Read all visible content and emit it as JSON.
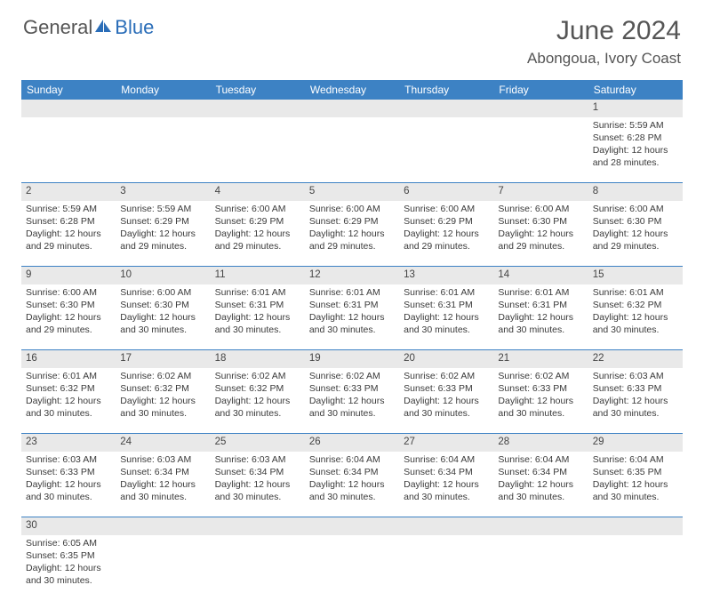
{
  "brand": {
    "general": "General",
    "blue": "Blue"
  },
  "title": "June 2024",
  "location": "Abongoua, Ivory Coast",
  "colors": {
    "header_bg": "#3d82c4",
    "header_text": "#ffffff",
    "daynum_bg": "#e9e9e9",
    "row_border": "#3d82c4",
    "logo_blue": "#2a6db8",
    "text": "#333333"
  },
  "weekdays": [
    "Sunday",
    "Monday",
    "Tuesday",
    "Wednesday",
    "Thursday",
    "Friday",
    "Saturday"
  ],
  "weeks": [
    {
      "nums": [
        "",
        "",
        "",
        "",
        "",
        "",
        "1"
      ],
      "cells": [
        null,
        null,
        null,
        null,
        null,
        null,
        {
          "sunrise": "Sunrise: 5:59 AM",
          "sunset": "Sunset: 6:28 PM",
          "d1": "Daylight: 12 hours",
          "d2": "and 28 minutes."
        }
      ]
    },
    {
      "nums": [
        "2",
        "3",
        "4",
        "5",
        "6",
        "7",
        "8"
      ],
      "cells": [
        {
          "sunrise": "Sunrise: 5:59 AM",
          "sunset": "Sunset: 6:28 PM",
          "d1": "Daylight: 12 hours",
          "d2": "and 29 minutes."
        },
        {
          "sunrise": "Sunrise: 5:59 AM",
          "sunset": "Sunset: 6:29 PM",
          "d1": "Daylight: 12 hours",
          "d2": "and 29 minutes."
        },
        {
          "sunrise": "Sunrise: 6:00 AM",
          "sunset": "Sunset: 6:29 PM",
          "d1": "Daylight: 12 hours",
          "d2": "and 29 minutes."
        },
        {
          "sunrise": "Sunrise: 6:00 AM",
          "sunset": "Sunset: 6:29 PM",
          "d1": "Daylight: 12 hours",
          "d2": "and 29 minutes."
        },
        {
          "sunrise": "Sunrise: 6:00 AM",
          "sunset": "Sunset: 6:29 PM",
          "d1": "Daylight: 12 hours",
          "d2": "and 29 minutes."
        },
        {
          "sunrise": "Sunrise: 6:00 AM",
          "sunset": "Sunset: 6:30 PM",
          "d1": "Daylight: 12 hours",
          "d2": "and 29 minutes."
        },
        {
          "sunrise": "Sunrise: 6:00 AM",
          "sunset": "Sunset: 6:30 PM",
          "d1": "Daylight: 12 hours",
          "d2": "and 29 minutes."
        }
      ]
    },
    {
      "nums": [
        "9",
        "10",
        "11",
        "12",
        "13",
        "14",
        "15"
      ],
      "cells": [
        {
          "sunrise": "Sunrise: 6:00 AM",
          "sunset": "Sunset: 6:30 PM",
          "d1": "Daylight: 12 hours",
          "d2": "and 29 minutes."
        },
        {
          "sunrise": "Sunrise: 6:00 AM",
          "sunset": "Sunset: 6:30 PM",
          "d1": "Daylight: 12 hours",
          "d2": "and 30 minutes."
        },
        {
          "sunrise": "Sunrise: 6:01 AM",
          "sunset": "Sunset: 6:31 PM",
          "d1": "Daylight: 12 hours",
          "d2": "and 30 minutes."
        },
        {
          "sunrise": "Sunrise: 6:01 AM",
          "sunset": "Sunset: 6:31 PM",
          "d1": "Daylight: 12 hours",
          "d2": "and 30 minutes."
        },
        {
          "sunrise": "Sunrise: 6:01 AM",
          "sunset": "Sunset: 6:31 PM",
          "d1": "Daylight: 12 hours",
          "d2": "and 30 minutes."
        },
        {
          "sunrise": "Sunrise: 6:01 AM",
          "sunset": "Sunset: 6:31 PM",
          "d1": "Daylight: 12 hours",
          "d2": "and 30 minutes."
        },
        {
          "sunrise": "Sunrise: 6:01 AM",
          "sunset": "Sunset: 6:32 PM",
          "d1": "Daylight: 12 hours",
          "d2": "and 30 minutes."
        }
      ]
    },
    {
      "nums": [
        "16",
        "17",
        "18",
        "19",
        "20",
        "21",
        "22"
      ],
      "cells": [
        {
          "sunrise": "Sunrise: 6:01 AM",
          "sunset": "Sunset: 6:32 PM",
          "d1": "Daylight: 12 hours",
          "d2": "and 30 minutes."
        },
        {
          "sunrise": "Sunrise: 6:02 AM",
          "sunset": "Sunset: 6:32 PM",
          "d1": "Daylight: 12 hours",
          "d2": "and 30 minutes."
        },
        {
          "sunrise": "Sunrise: 6:02 AM",
          "sunset": "Sunset: 6:32 PM",
          "d1": "Daylight: 12 hours",
          "d2": "and 30 minutes."
        },
        {
          "sunrise": "Sunrise: 6:02 AM",
          "sunset": "Sunset: 6:33 PM",
          "d1": "Daylight: 12 hours",
          "d2": "and 30 minutes."
        },
        {
          "sunrise": "Sunrise: 6:02 AM",
          "sunset": "Sunset: 6:33 PM",
          "d1": "Daylight: 12 hours",
          "d2": "and 30 minutes."
        },
        {
          "sunrise": "Sunrise: 6:02 AM",
          "sunset": "Sunset: 6:33 PM",
          "d1": "Daylight: 12 hours",
          "d2": "and 30 minutes."
        },
        {
          "sunrise": "Sunrise: 6:03 AM",
          "sunset": "Sunset: 6:33 PM",
          "d1": "Daylight: 12 hours",
          "d2": "and 30 minutes."
        }
      ]
    },
    {
      "nums": [
        "23",
        "24",
        "25",
        "26",
        "27",
        "28",
        "29"
      ],
      "cells": [
        {
          "sunrise": "Sunrise: 6:03 AM",
          "sunset": "Sunset: 6:33 PM",
          "d1": "Daylight: 12 hours",
          "d2": "and 30 minutes."
        },
        {
          "sunrise": "Sunrise: 6:03 AM",
          "sunset": "Sunset: 6:34 PM",
          "d1": "Daylight: 12 hours",
          "d2": "and 30 minutes."
        },
        {
          "sunrise": "Sunrise: 6:03 AM",
          "sunset": "Sunset: 6:34 PM",
          "d1": "Daylight: 12 hours",
          "d2": "and 30 minutes."
        },
        {
          "sunrise": "Sunrise: 6:04 AM",
          "sunset": "Sunset: 6:34 PM",
          "d1": "Daylight: 12 hours",
          "d2": "and 30 minutes."
        },
        {
          "sunrise": "Sunrise: 6:04 AM",
          "sunset": "Sunset: 6:34 PM",
          "d1": "Daylight: 12 hours",
          "d2": "and 30 minutes."
        },
        {
          "sunrise": "Sunrise: 6:04 AM",
          "sunset": "Sunset: 6:34 PM",
          "d1": "Daylight: 12 hours",
          "d2": "and 30 minutes."
        },
        {
          "sunrise": "Sunrise: 6:04 AM",
          "sunset": "Sunset: 6:35 PM",
          "d1": "Daylight: 12 hours",
          "d2": "and 30 minutes."
        }
      ]
    },
    {
      "nums": [
        "30",
        "",
        "",
        "",
        "",
        "",
        ""
      ],
      "cells": [
        {
          "sunrise": "Sunrise: 6:05 AM",
          "sunset": "Sunset: 6:35 PM",
          "d1": "Daylight: 12 hours",
          "d2": "and 30 minutes."
        },
        null,
        null,
        null,
        null,
        null,
        null
      ]
    }
  ]
}
